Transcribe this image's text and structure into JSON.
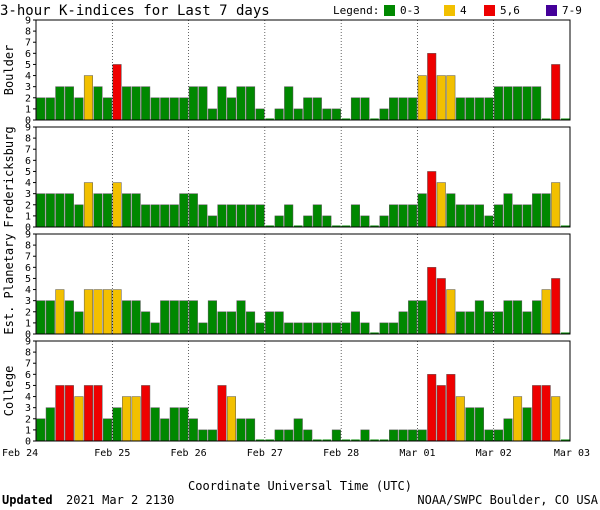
{
  "title": "3-hour K-indices for Last 7 days",
  "legend": {
    "label": "Legend:",
    "items": [
      {
        "label": "0-3",
        "color": "#008800"
      },
      {
        "label": "4",
        "color": "#f2c000"
      },
      {
        "label": "5,6",
        "color": "#ee0000"
      },
      {
        "label": "7-9",
        "color": "#440099"
      }
    ]
  },
  "xlabel": "Coordinate Universal Time (UTC)",
  "footer": {
    "updated_label": "Updated",
    "updated_value": "2021 Mar  2 2130",
    "source": "NOAA/SWPC Boulder, CO USA"
  },
  "colors": {
    "bar_outline": "#555555",
    "frame": "#000000"
  },
  "chart_data": {
    "type": "bar",
    "x_tick_labels": [
      "Feb 24",
      "Feb 25",
      "Feb 26",
      "Feb 27",
      "Feb 28",
      "Mar 01",
      "Mar 02",
      "Mar 03"
    ],
    "ylim": [
      0,
      9
    ],
    "yticks": [
      0,
      1,
      2,
      3,
      4,
      5,
      6,
      7,
      8,
      9
    ],
    "bars_per_day": 8,
    "series": [
      {
        "name": "Boulder",
        "values": [
          2,
          2,
          3,
          3,
          2,
          4,
          3,
          2,
          5,
          3,
          3,
          3,
          2,
          2,
          2,
          2,
          3,
          3,
          1,
          3,
          2,
          3,
          3,
          1,
          0,
          1,
          3,
          1,
          2,
          2,
          1,
          1,
          0,
          2,
          2,
          0,
          1,
          2,
          2,
          2,
          4,
          6,
          4,
          4,
          2,
          2,
          2,
          2,
          3,
          3,
          3,
          3,
          3,
          0,
          5,
          0
        ]
      },
      {
        "name": "Fredericksburg",
        "values": [
          3,
          3,
          3,
          3,
          2,
          4,
          3,
          3,
          4,
          3,
          3,
          2,
          2,
          2,
          2,
          3,
          3,
          2,
          1,
          2,
          2,
          2,
          2,
          2,
          0,
          1,
          2,
          0,
          1,
          2,
          1,
          0,
          0,
          2,
          1,
          0,
          1,
          2,
          2,
          2,
          3,
          5,
          4,
          3,
          2,
          2,
          2,
          1,
          2,
          3,
          2,
          2,
          3,
          3,
          4,
          0
        ]
      },
      {
        "name": "Est. Planetary",
        "values": [
          3,
          3,
          4,
          3,
          2,
          4,
          4,
          4,
          4,
          3,
          3,
          2,
          1,
          3,
          3,
          3,
          3,
          1,
          3,
          2,
          2,
          3,
          2,
          1,
          2,
          2,
          1,
          1,
          1,
          1,
          1,
          1,
          1,
          2,
          1,
          0,
          1,
          1,
          2,
          3,
          3,
          6,
          5,
          4,
          2,
          2,
          3,
          2,
          2,
          3,
          3,
          2,
          3,
          4,
          5,
          0
        ]
      },
      {
        "name": "College",
        "values": [
          2,
          3,
          5,
          5,
          4,
          5,
          5,
          2,
          3,
          4,
          4,
          5,
          3,
          2,
          3,
          3,
          2,
          1,
          1,
          5,
          4,
          2,
          2,
          0,
          0,
          1,
          1,
          2,
          1,
          0,
          0,
          1,
          0,
          0,
          1,
          0,
          0,
          1,
          1,
          1,
          1,
          6,
          5,
          6,
          4,
          3,
          3,
          1,
          1,
          2,
          4,
          3,
          5,
          5,
          4,
          0
        ]
      }
    ]
  }
}
